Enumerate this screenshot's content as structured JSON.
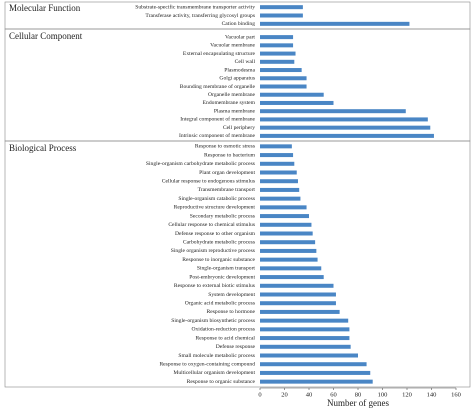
{
  "chart_data": [
    {
      "type": "bar",
      "orientation": "horizontal",
      "title": "Molecular Function",
      "color": "#4a86c5",
      "categories": [
        "Substrate-specific transmembrane transporter activity",
        "Transferase activity, transferring glycosyl groups",
        "Cation binding"
      ],
      "values": [
        35,
        35,
        122
      ]
    },
    {
      "type": "bar",
      "orientation": "horizontal",
      "title": "Cellular Component",
      "color": "#4a86c5",
      "categories": [
        "Vacuolar part",
        "Vacuolar membrane",
        "External encapsulating structure",
        "Cell wall",
        "Plasmodesma",
        "Golgi apparatus",
        "Bounding membrane of organelle",
        "Organelle membrane",
        "Endomembrane system",
        "Plasma membrane",
        "Integral component of membrane",
        "Cell periphery",
        "Intrinsic component of membrane"
      ],
      "values": [
        27,
        27,
        29,
        28,
        34,
        38,
        38,
        52,
        60,
        119,
        137,
        139,
        142
      ]
    },
    {
      "type": "bar",
      "orientation": "horizontal",
      "title": "Biological Process",
      "color": "#4a86c5",
      "categories": [
        "Response to osmotic stress",
        "Response to bacterium",
        "Single-organism carbohydrate metabolic process",
        "Plant organ development",
        "Cellular response to endogenous stimulus",
        "Transmembrane transport",
        "Single-organism catabolic process",
        "Reproductive structure development",
        "Secondary metabolic process",
        "Cellular response to chemical stimulus",
        "Defense response to other organism",
        "Carbohydrate metabolic process",
        "Single organism reproductive process",
        "Response to inorganic substance",
        "Single-organism transport",
        "Post-embryonic development",
        "Response to external biotic stimulus",
        "System development",
        "Organic acid metabolic process",
        "Response to hormone",
        "Single-organism biosynthetic process",
        "Oxidation-reduction process",
        "Response to acid chemical",
        "Defense response",
        "Small molecule metabolic process",
        "Response to oxygen-containing compound",
        "Multicellular organism development",
        "Response to organic substance"
      ],
      "values": [
        26,
        27,
        28,
        30,
        31,
        32,
        33,
        38,
        40,
        42,
        43,
        45,
        46,
        47,
        50,
        52,
        60,
        62,
        62,
        65,
        72,
        73,
        73,
        74,
        80,
        87,
        90,
        92
      ],
      "xlim": [
        0,
        160
      ],
      "xticks": [
        0,
        20,
        40,
        60,
        80,
        100,
        120,
        140,
        160
      ],
      "x_label": "Number of genes"
    }
  ]
}
